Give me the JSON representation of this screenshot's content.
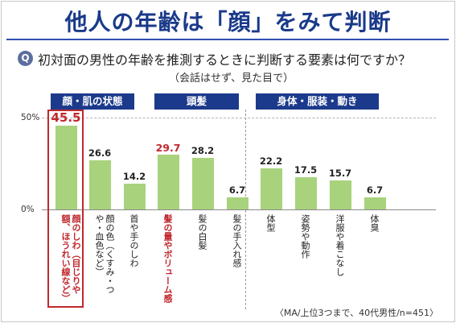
{
  "title": "他人の年齢は「顔」をみて判断",
  "question": {
    "icon_label": "Q",
    "text": "初対面の男性の年齢を推測するときに判断する要素は何ですか？",
    "sub": "（会話はせず、見た目で）"
  },
  "colors": {
    "title": "#1a3a8a",
    "header": "#1c3a8c",
    "bar": "#a9d27d",
    "highlight": "#c0282e"
  },
  "chart_data": {
    "type": "bar",
    "groups": [
      {
        "label": "顔・肌の状態",
        "categories": [
          0,
          1,
          2
        ]
      },
      {
        "label": "頭髪",
        "categories": [
          3,
          4,
          5
        ]
      },
      {
        "label": "身体・服装・動き",
        "categories": [
          6,
          7,
          8,
          9
        ]
      }
    ],
    "categories": [
      "顔のしわ（目じりや額、ほうれい線など）",
      "顔の色（くすみ・つや・血色など）",
      "首や手のしわ",
      "髪の量やボリューム感",
      "髪の白髪",
      "髪の手入れ感",
      "体型",
      "姿勢や動作",
      "洋服や着こなし",
      "体臭"
    ],
    "values": [
      45.5,
      26.6,
      14.2,
      29.7,
      28.2,
      6.7,
      22.2,
      17.5,
      15.7,
      6.7
    ],
    "value_labels": [
      "45.5",
      "26.6",
      "14.2",
      "29.7",
      "28.2",
      "6.7",
      "22.2",
      "17.5",
      "15.7",
      "6.7"
    ],
    "highlighted": [
      0,
      3
    ],
    "yticks": [
      "50%",
      "0%"
    ],
    "ylim": [
      0,
      50
    ]
  },
  "note": "〈MA/上位3つまで、40代男性/n=451〉"
}
